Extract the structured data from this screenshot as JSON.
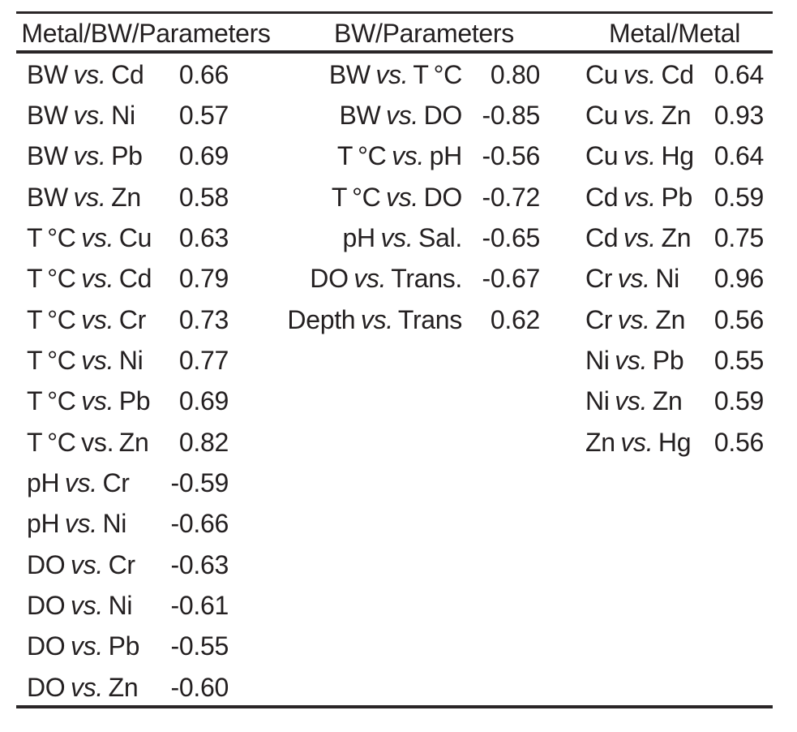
{
  "page": {
    "background": "#ffffff",
    "text_color": "#242021",
    "rule_color": "#2a2627"
  },
  "table": {
    "columns": [
      {
        "header": "Metal/BW/Parameters",
        "rows": [
          {
            "left": "BW",
            "vs": "vs.",
            "right": "Cd",
            "value": "0.66",
            "vs_italic": true
          },
          {
            "left": "BW",
            "vs": "vs.",
            "right": "Ni",
            "value": "0.57",
            "vs_italic": true
          },
          {
            "left": "BW",
            "vs": "vs.",
            "right": "Pb",
            "value": "0.69",
            "vs_italic": true
          },
          {
            "left": "BW",
            "vs": "vs.",
            "right": "Zn",
            "value": "0.58",
            "vs_italic": true
          },
          {
            "left": "T °C",
            "vs": "vs.",
            "right": "Cu",
            "value": "0.63",
            "vs_italic": true
          },
          {
            "left": "T °C",
            "vs": "vs.",
            "right": "Cd",
            "value": "0.79",
            "vs_italic": true
          },
          {
            "left": "T °C",
            "vs": "vs.",
            "right": "Cr",
            "value": "0.73",
            "vs_italic": true
          },
          {
            "left": "T °C",
            "vs": "vs.",
            "right": "Ni",
            "value": "0.77",
            "vs_italic": true
          },
          {
            "left": "T °C",
            "vs": "vs.",
            "right": "Pb",
            "value": "0.69",
            "vs_italic": true
          },
          {
            "left": "T °C",
            "vs": "vs.",
            "right": "Zn",
            "value": "0.82",
            "vs_italic": false
          },
          {
            "left": "pH",
            "vs": "vs.",
            "right": "Cr",
            "value": "-0.59",
            "vs_italic": true
          },
          {
            "left": "pH",
            "vs": "vs.",
            "right": "Ni",
            "value": "-0.66",
            "vs_italic": true
          },
          {
            "left": "DO",
            "vs": "vs.",
            "right": "Cr",
            "value": "-0.63",
            "vs_italic": true
          },
          {
            "left": "DO",
            "vs": "vs.",
            "right": "Ni",
            "value": "-0.61",
            "vs_italic": true
          },
          {
            "left": "DO",
            "vs": "vs.",
            "right": "Pb",
            "value": "-0.55",
            "vs_italic": true
          },
          {
            "left": "DO",
            "vs": "vs.",
            "right": "Zn",
            "value": "-0.60",
            "vs_italic": true
          }
        ]
      },
      {
        "header": "BW/Parameters",
        "rows": [
          {
            "left": "BW",
            "vs": "vs.",
            "right": "T °C",
            "value": "0.80",
            "vs_italic": true
          },
          {
            "left": "BW",
            "vs": "vs.",
            "right": "DO",
            "value": "-0.85",
            "vs_italic": true
          },
          {
            "left": "T °C",
            "vs": "vs.",
            "right": "pH",
            "value": "-0.56",
            "vs_italic": true
          },
          {
            "left": "T °C",
            "vs": "vs.",
            "right": "DO",
            "value": "-0.72",
            "vs_italic": true
          },
          {
            "left": "pH",
            "vs": "vs.",
            "right": "Sal.",
            "value": "-0.65",
            "vs_italic": true
          },
          {
            "left": "DO",
            "vs": "vs.",
            "right": "Trans.",
            "value": "-0.67",
            "vs_italic": true
          },
          {
            "left": "Depth",
            "vs": "vs.",
            "right": "Trans",
            "value": "0.62",
            "vs_italic": true
          }
        ]
      },
      {
        "header": "Metal/Metal",
        "rows": [
          {
            "left": "Cu",
            "vs": "vs.",
            "right": "Cd",
            "value": "0.64",
            "vs_italic": true
          },
          {
            "left": "Cu",
            "vs": "vs.",
            "right": "Zn",
            "value": "0.93",
            "vs_italic": true
          },
          {
            "left": "Cu",
            "vs": "vs.",
            "right": "Hg",
            "value": "0.64",
            "vs_italic": true
          },
          {
            "left": "Cd",
            "vs": "vs.",
            "right": "Pb",
            "value": "0.59",
            "vs_italic": true
          },
          {
            "left": "Cd",
            "vs": "vs.",
            "right": "Zn",
            "value": "0.75",
            "vs_italic": true
          },
          {
            "left": "Cr",
            "vs": "vs.",
            "right": "Ni",
            "value": "0.96",
            "vs_italic": true
          },
          {
            "left": "Cr",
            "vs": "vs.",
            "right": "Zn",
            "value": "0.56",
            "vs_italic": true
          },
          {
            "left": "Ni",
            "vs": "vs.",
            "right": "Pb",
            "value": "0.55",
            "vs_italic": true
          },
          {
            "left": "Ni",
            "vs": "vs.",
            "right": "Zn",
            "value": "0.59",
            "vs_italic": true
          },
          {
            "left": "Zn",
            "vs": "vs.",
            "right": "Hg",
            "value": "0.56",
            "vs_italic": true
          }
        ]
      }
    ]
  }
}
